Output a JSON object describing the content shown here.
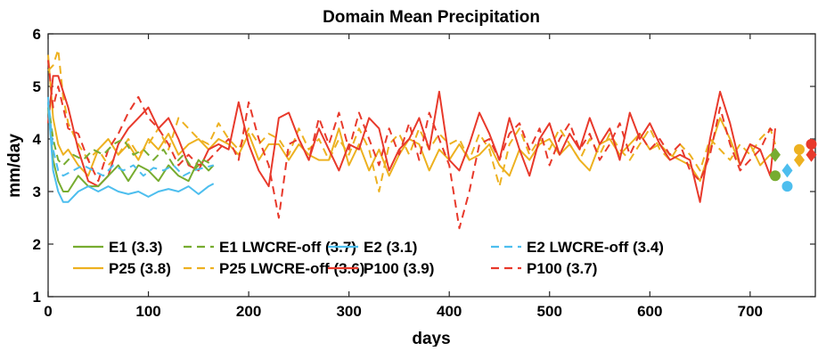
{
  "chart_data": {
    "type": "line",
    "title": "Domain Mean Precipitation",
    "xlabel": "days",
    "ylabel": "mm/day",
    "xlim": [
      0,
      765
    ],
    "ylim": [
      1,
      6
    ],
    "xticks": [
      0,
      100,
      200,
      300,
      400,
      500,
      600,
      700
    ],
    "yticks": [
      1,
      2,
      3,
      4,
      5,
      6
    ],
    "grid": false,
    "legend_position": "lower-left",
    "series": [
      {
        "name": "E1 (3.3)",
        "color": "#77ac30",
        "dash": "solid",
        "x": [
          0,
          5,
          10,
          15,
          20,
          30,
          40,
          50,
          60,
          70,
          80,
          90,
          100,
          110,
          120,
          130,
          140,
          150,
          160,
          165
        ],
        "y": [
          4.6,
          3.6,
          3.2,
          3.0,
          3.0,
          3.3,
          3.1,
          3.1,
          3.3,
          3.5,
          3.2,
          3.5,
          3.4,
          3.2,
          3.5,
          3.3,
          3.2,
          3.6,
          3.4,
          3.5
        ]
      },
      {
        "name": "E1 LWCRE-off (3.7)",
        "color": "#77ac30",
        "dash": "dashed",
        "x": [
          0,
          5,
          10,
          15,
          25,
          35,
          45,
          55,
          65,
          75,
          85,
          95,
          105,
          115,
          125,
          135,
          145,
          155,
          165
        ],
        "y": [
          4.7,
          4.0,
          3.6,
          3.5,
          3.7,
          3.6,
          3.8,
          3.7,
          3.9,
          4.0,
          3.7,
          3.8,
          3.6,
          3.8,
          3.5,
          3.7,
          3.4,
          3.6,
          3.5
        ]
      },
      {
        "name": "E2 (3.1)",
        "color": "#4dbeee",
        "dash": "solid",
        "x": [
          0,
          5,
          10,
          15,
          20,
          30,
          40,
          50,
          60,
          70,
          80,
          90,
          100,
          110,
          120,
          130,
          140,
          150,
          160,
          165
        ],
        "y": [
          4.7,
          3.4,
          3.0,
          2.8,
          2.8,
          3.0,
          3.1,
          3.0,
          3.1,
          3.0,
          2.95,
          3.0,
          2.9,
          3.0,
          3.05,
          3.0,
          3.1,
          2.95,
          3.1,
          3.15
        ]
      },
      {
        "name": "E2 LWCRE-off (3.4)",
        "color": "#4dbeee",
        "dash": "dashed",
        "x": [
          0,
          5,
          10,
          15,
          25,
          35,
          45,
          55,
          65,
          75,
          85,
          95,
          105,
          115,
          125,
          135,
          145,
          155,
          165
        ],
        "y": [
          4.8,
          3.8,
          3.4,
          3.3,
          3.4,
          3.5,
          3.4,
          3.3,
          3.5,
          3.4,
          3.5,
          3.3,
          3.45,
          3.4,
          3.5,
          3.3,
          3.4,
          3.45,
          3.5
        ]
      },
      {
        "name": "P25 (3.8)",
        "color": "#edb120",
        "dash": "solid",
        "x": [
          0,
          5,
          10,
          15,
          20,
          30,
          40,
          50,
          60,
          70,
          80,
          90,
          100,
          110,
          120,
          130,
          140,
          150,
          160,
          170,
          180,
          190,
          200,
          210,
          220,
          230,
          240,
          250,
          260,
          270,
          280,
          290,
          300,
          310,
          320,
          330,
          340,
          350,
          360,
          370,
          380,
          390,
          400,
          410,
          420,
          430,
          440,
          450,
          460,
          470,
          480,
          490,
          500,
          510,
          520,
          530,
          540,
          550,
          560,
          570,
          580,
          590,
          600,
          610,
          620,
          630,
          640,
          650,
          660,
          670,
          680,
          690,
          700,
          710,
          720,
          725
        ],
        "y": [
          5.6,
          4.4,
          3.9,
          3.7,
          3.8,
          3.5,
          3.3,
          3.8,
          4.0,
          3.7,
          3.9,
          3.6,
          4.0,
          3.8,
          4.1,
          3.7,
          3.9,
          4.0,
          3.8,
          4.0,
          3.9,
          3.7,
          4.1,
          3.6,
          3.9,
          3.9,
          3.6,
          3.9,
          3.7,
          3.6,
          3.6,
          4.2,
          3.5,
          3.9,
          3.4,
          3.8,
          3.3,
          3.7,
          4.0,
          3.9,
          3.4,
          3.8,
          3.6,
          3.9,
          3.6,
          3.7,
          3.9,
          3.5,
          3.3,
          3.8,
          3.6,
          3.9,
          4.0,
          3.7,
          3.9,
          3.6,
          3.4,
          3.9,
          4.0,
          3.7,
          3.9,
          4.1,
          3.8,
          3.9,
          3.7,
          3.6,
          3.5,
          3.2,
          3.8,
          4.4,
          4.0,
          3.5,
          3.9,
          3.5,
          3.7,
          3.6
        ]
      },
      {
        "name": "P25 LWCRE-off (3.6)",
        "color": "#edb120",
        "dash": "dashed",
        "x": [
          0,
          5,
          10,
          15,
          20,
          30,
          40,
          50,
          60,
          70,
          80,
          90,
          100,
          110,
          120,
          130,
          140,
          150,
          160,
          170,
          180,
          190,
          200,
          210,
          220,
          230,
          240,
          250,
          260,
          270,
          280,
          290,
          300,
          310,
          320,
          330,
          340,
          350,
          360,
          370,
          380,
          390,
          400,
          410,
          420,
          430,
          440,
          450,
          460,
          470,
          480,
          490,
          500,
          510,
          520,
          530,
          540,
          550,
          560,
          570,
          580,
          590,
          600,
          610,
          620,
          630,
          640,
          650,
          660,
          670,
          680,
          690,
          700,
          710,
          720,
          725
        ],
        "y": [
          5.3,
          5.4,
          5.7,
          4.8,
          4.3,
          3.9,
          3.6,
          3.8,
          3.5,
          3.7,
          4.0,
          3.7,
          3.9,
          4.2,
          3.8,
          4.4,
          4.2,
          4.0,
          3.9,
          4.3,
          4.0,
          3.8,
          4.2,
          3.9,
          4.1,
          4.0,
          3.7,
          4.2,
          3.8,
          4.0,
          3.6,
          4.0,
          3.7,
          4.2,
          3.8,
          3.0,
          3.9,
          4.1,
          3.7,
          4.2,
          3.8,
          4.1,
          3.9,
          4.0,
          3.6,
          4.1,
          3.8,
          3.1,
          3.9,
          4.2,
          3.7,
          4.0,
          3.8,
          4.2,
          3.9,
          3.6,
          4.0,
          3.7,
          4.1,
          3.8,
          3.6,
          3.9,
          4.2,
          3.8,
          3.6,
          3.9,
          3.7,
          3.4,
          4.0,
          3.8,
          3.6,
          3.9,
          3.7,
          4.0,
          4.2,
          3.9
        ]
      },
      {
        "name": "P100 (3.9)",
        "color": "#e8392b",
        "dash": "solid",
        "x": [
          0,
          5,
          10,
          15,
          20,
          30,
          40,
          50,
          60,
          70,
          80,
          90,
          100,
          110,
          120,
          130,
          140,
          150,
          160,
          170,
          180,
          190,
          200,
          210,
          220,
          230,
          240,
          250,
          260,
          270,
          280,
          290,
          300,
          310,
          320,
          330,
          340,
          350,
          360,
          370,
          380,
          390,
          400,
          410,
          420,
          430,
          440,
          450,
          460,
          470,
          480,
          490,
          500,
          510,
          520,
          530,
          540,
          550,
          560,
          570,
          580,
          590,
          600,
          610,
          620,
          630,
          640,
          650,
          660,
          670,
          680,
          690,
          700,
          710,
          720,
          725
        ],
        "y": [
          4.3,
          5.2,
          5.2,
          4.9,
          4.6,
          3.8,
          3.2,
          3.1,
          3.3,
          3.9,
          4.2,
          4.4,
          4.6,
          4.2,
          4.4,
          4.0,
          3.5,
          3.4,
          3.8,
          3.9,
          3.8,
          4.7,
          3.9,
          3.4,
          3.1,
          4.4,
          4.5,
          4.0,
          3.6,
          4.2,
          3.8,
          3.4,
          3.9,
          3.8,
          4.4,
          4.2,
          3.4,
          3.8,
          4.0,
          4.4,
          3.8,
          4.9,
          3.6,
          3.4,
          3.9,
          4.5,
          4.1,
          3.6,
          4.4,
          3.8,
          3.3,
          4.0,
          4.3,
          3.7,
          4.1,
          3.8,
          4.4,
          3.9,
          4.2,
          3.6,
          4.5,
          4.0,
          4.3,
          3.9,
          3.6,
          3.7,
          3.6,
          2.8,
          4.0,
          4.9,
          4.3,
          3.5,
          3.9,
          3.8,
          3.3,
          4.2
        ]
      },
      {
        "name": "P100 (3.7)",
        "color": "#e8392b",
        "dash": "dashed",
        "x": [
          0,
          5,
          10,
          15,
          20,
          30,
          40,
          50,
          60,
          70,
          80,
          90,
          100,
          110,
          120,
          130,
          140,
          150,
          160,
          170,
          180,
          190,
          200,
          210,
          220,
          230,
          240,
          250,
          260,
          270,
          280,
          290,
          300,
          310,
          320,
          330,
          340,
          350,
          360,
          370,
          380,
          390,
          400,
          410,
          420,
          430,
          440,
          450,
          460,
          470,
          480,
          490,
          500,
          510,
          520,
          530,
          540,
          550,
          560,
          570,
          580,
          590,
          600,
          610,
          620,
          630,
          640,
          650,
          660,
          670,
          680,
          690,
          700,
          710,
          720,
          725
        ],
        "y": [
          5.5,
          4.6,
          5.0,
          4.6,
          4.2,
          4.1,
          3.6,
          3.2,
          3.8,
          4.1,
          4.5,
          4.8,
          4.4,
          4.2,
          3.9,
          3.5,
          3.7,
          3.5,
          3.6,
          3.8,
          4.0,
          3.6,
          4.7,
          4.0,
          3.5,
          2.5,
          3.9,
          4.0,
          3.6,
          4.4,
          3.9,
          4.5,
          3.8,
          4.5,
          4.0,
          3.5,
          4.2,
          3.7,
          4.3,
          3.6,
          4.5,
          4.0,
          3.5,
          2.3,
          3.0,
          3.9,
          4.0,
          3.6,
          4.1,
          4.3,
          3.8,
          4.2,
          3.5,
          4.0,
          4.3,
          3.8,
          4.1,
          3.6,
          3.9,
          4.3,
          3.7,
          4.1,
          3.8,
          4.0,
          3.7,
          3.9,
          3.4,
          3.2,
          3.7,
          4.6,
          3.9,
          3.4,
          3.6,
          3.8,
          4.2,
          4.1
        ]
      }
    ],
    "markers": [
      {
        "series": "E1 (3.3)",
        "shape": "circle",
        "x": 725,
        "y": 3.3,
        "color": "#77ac30"
      },
      {
        "series": "E1 LWCRE-off (3.7)",
        "shape": "diamond",
        "x": 725,
        "y": 3.7,
        "color": "#77ac30"
      },
      {
        "series": "E2 (3.1)",
        "shape": "circle",
        "x": 737,
        "y": 3.1,
        "color": "#4dbeee"
      },
      {
        "series": "E2 LWCRE-off (3.4)",
        "shape": "diamond",
        "x": 737,
        "y": 3.4,
        "color": "#4dbeee"
      },
      {
        "series": "P25 (3.8)",
        "shape": "circle",
        "x": 749,
        "y": 3.8,
        "color": "#edb120"
      },
      {
        "series": "P25 LWCRE-off (3.6)",
        "shape": "diamond",
        "x": 749,
        "y": 3.6,
        "color": "#edb120"
      },
      {
        "series": "P100 (3.9)",
        "shape": "circle",
        "x": 761,
        "y": 3.9,
        "color": "#e8392b"
      },
      {
        "series": "P100 (3.7)",
        "shape": "diamond",
        "x": 761,
        "y": 3.7,
        "color": "#e8392b"
      }
    ]
  }
}
